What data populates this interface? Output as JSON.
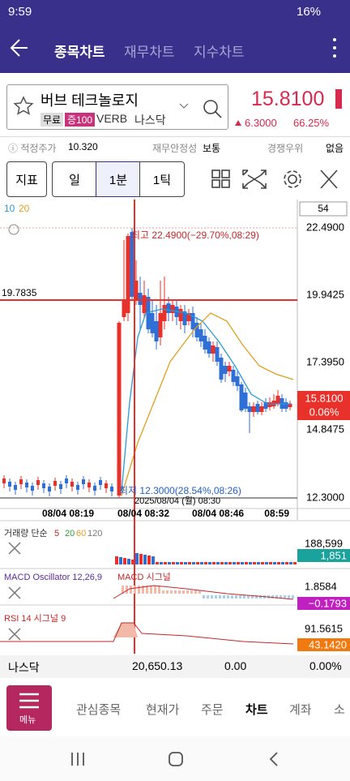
{
  "status_bar": {
    "time": "9:59",
    "battery": "16%"
  },
  "header": {
    "tabs": [
      "종목차트",
      "재무차트",
      "지수차트"
    ]
  },
  "stock": {
    "name": "버브 테크놀로지",
    "tags": [
      "무료",
      "증100"
    ],
    "ticker": "VERB",
    "market": "나스닥",
    "price": "15.8100",
    "change": "6.3000",
    "change_pct": "66.25%"
  },
  "info_row": [
    {
      "label": "적정주가",
      "value": "10.320"
    },
    {
      "label": "재무안정성",
      "value": "보통"
    },
    {
      "label": "경쟁우위",
      "value": "없음"
    }
  ],
  "toolbar": {
    "indicator": "지표",
    "periods": [
      "일",
      "1분",
      "1틱"
    ]
  },
  "chart": {
    "ma_legend": [
      "10",
      "20"
    ],
    "count": "54",
    "price_axis": [
      "22.4900",
      "19.9425",
      "17.3950",
      "14.8475",
      "12.3000"
    ],
    "crosshair_price": "19.7835",
    "last_price": "15.8100",
    "last_change": "0.06%",
    "high_note": "최고 22.4900(−29.70%,08:29)",
    "low_note": "최저 12.3000(28.54%,08:26)",
    "crosshair_time": "2025/08/04 (월) 08:30",
    "time_axis": [
      "08/04 08:19",
      "08/04 08:32",
      "08/04 08:46",
      "08:59"
    ]
  },
  "volume": {
    "label": "거래량 단순",
    "periods": [
      "5",
      "20",
      "60",
      "120"
    ],
    "max": "188,599",
    "current": "1,851"
  },
  "macd": {
    "label": "MACD Oscillator 12,26,9",
    "signal_label": "MACD 시그널",
    "max": "1.8584",
    "current": "−0.1793"
  },
  "rsi": {
    "label": "RSI 14 시그널 9",
    "max": "91.5615",
    "current": "43.1420"
  },
  "index_row": {
    "name": "나스닥",
    "value": "20,650.13",
    "change": "0.00",
    "change_pct": "0.00%"
  },
  "bottom_nav": {
    "menu": "메뉴",
    "items": [
      "관심종목",
      "현재가",
      "주문",
      "차트",
      "계좌",
      "소"
    ]
  }
}
